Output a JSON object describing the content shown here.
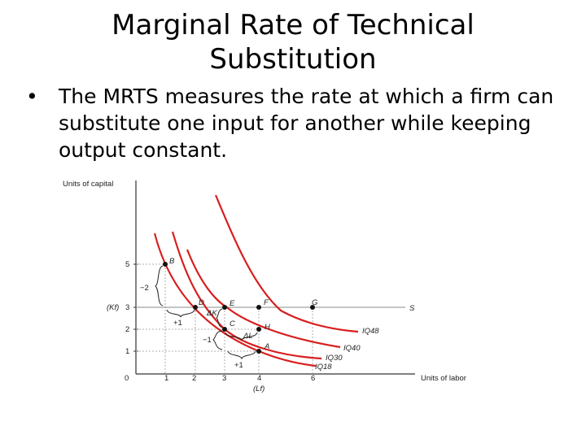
{
  "slide": {
    "title": "Marginal Rate of Technical Substitution",
    "bullet_glyph": "•",
    "bullet_text": "The MRTS measures  the rate at which a firm can substitute one input  for another while keeping  output constant."
  },
  "figure": {
    "y_axis_label": "Units of capital",
    "x_axis_label": "Units of labor",
    "origin_label": "0",
    "y_ticks": [
      "1",
      "2",
      "3",
      "5"
    ],
    "x_ticks": [
      "1",
      "2",
      "3",
      "4",
      "6"
    ],
    "kf_label": "(Kf)",
    "lf_label": "(Lf)",
    "point_labels": {
      "B": "B",
      "D": "D",
      "E": "E",
      "F": "F",
      "G": "G",
      "C": "C",
      "H": "H",
      "A": "A",
      "S": "S"
    },
    "curve_labels": {
      "iq48": "IQ48",
      "iq40": "IQ40",
      "iq30": "IQ30",
      "iq18": "IQ18"
    },
    "annotations": {
      "minus2": "−2",
      "plus1_top": "+1",
      "delta_k": "ΔK",
      "minus1": "−1",
      "delta_l": "ΔL",
      "plus1_bottom": "+1"
    },
    "colors": {
      "isoquant": "#d81e1e",
      "axis": "#333333",
      "expansion_line": "#888888",
      "guide": "#999999"
    }
  }
}
